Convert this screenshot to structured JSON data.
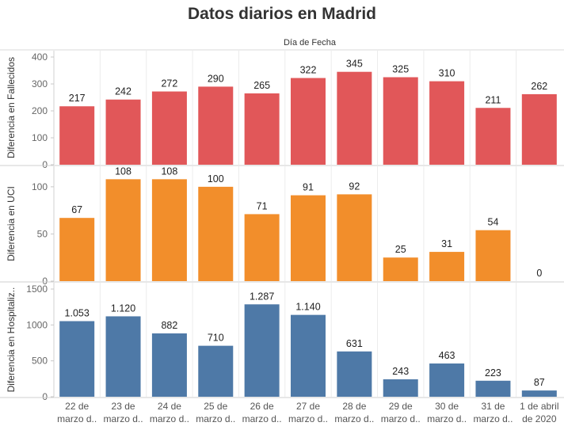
{
  "chart_data": {
    "type": "bar",
    "title": "Datos diarios en Madrid",
    "column_header": "Día de Fecha",
    "categories": [
      [
        "22 de",
        "marzo d.."
      ],
      [
        "23 de",
        "marzo d.."
      ],
      [
        "24 de",
        "marzo d.."
      ],
      [
        "25 de",
        "marzo d.."
      ],
      [
        "26 de",
        "marzo d.."
      ],
      [
        "27 de",
        "marzo d.."
      ],
      [
        "28 de",
        "marzo d.."
      ],
      [
        "29 de",
        "marzo d.."
      ],
      [
        "30 de",
        "marzo d.."
      ],
      [
        "31 de",
        "marzo d.."
      ],
      [
        "1 de abril",
        "de 2020"
      ]
    ],
    "panels": [
      {
        "name": "fallecidos",
        "ylabel": "Diferencia en Fallecidos",
        "color": "#e15759",
        "ylim": [
          0,
          400
        ],
        "ticks": [
          0,
          100,
          200,
          300,
          400
        ],
        "tick_labels": [
          "0",
          "100",
          "200",
          "300",
          "400"
        ],
        "values": [
          217,
          242,
          272,
          290,
          265,
          322,
          345,
          325,
          310,
          211,
          262
        ],
        "value_labels": [
          "217",
          "242",
          "272",
          "290",
          "265",
          "322",
          "345",
          "325",
          "310",
          "211",
          "262"
        ]
      },
      {
        "name": "uci",
        "ylabel": "Diferencia en UCI",
        "color": "#f28e2b",
        "ylim": [
          0,
          115
        ],
        "ticks": [
          0,
          50,
          100
        ],
        "tick_labels": [
          "0",
          "50",
          "100"
        ],
        "values": [
          67,
          108,
          108,
          100,
          71,
          91,
          92,
          25,
          31,
          54,
          0
        ],
        "value_labels": [
          "67",
          "108",
          "108",
          "100",
          "71",
          "91",
          "92",
          "25",
          "31",
          "54",
          "0"
        ]
      },
      {
        "name": "hospitalizados",
        "ylabel": "Diferencia en Hospitaliz..",
        "color": "#4e79a7",
        "ylim": [
          0,
          1500
        ],
        "ticks": [
          0,
          500,
          1000,
          1500
        ],
        "tick_labels": [
          "0",
          "500",
          "1000",
          "1500"
        ],
        "values": [
          1053,
          1120,
          882,
          710,
          1287,
          1140,
          631,
          243,
          463,
          223,
          87
        ],
        "value_labels": [
          "1.053",
          "1.120",
          "882",
          "710",
          "1.287",
          "1.140",
          "631",
          "243",
          "463",
          "223",
          "87"
        ]
      }
    ]
  }
}
